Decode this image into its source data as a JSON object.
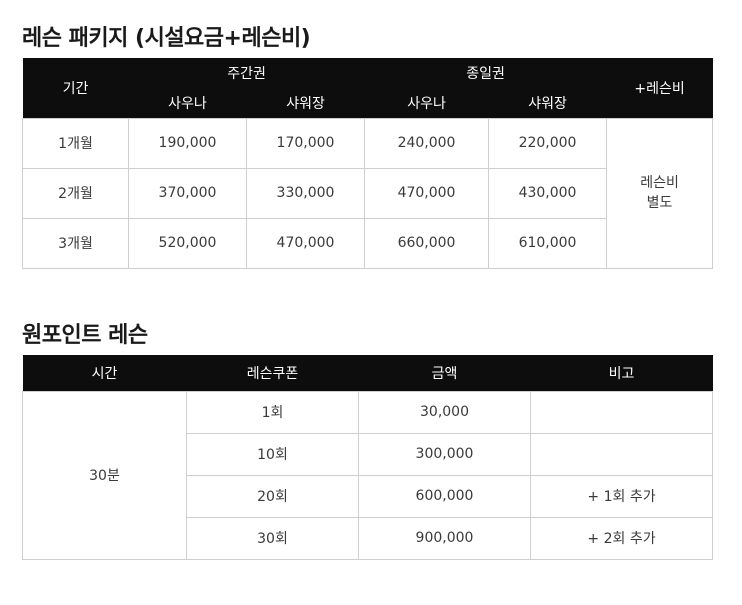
{
  "section1": {
    "title": "레슨 패키지 (시설요금+레슨비)",
    "headers": {
      "period": "기간",
      "weekday": "주간권",
      "fullday": "종일권",
      "sauna": "사우나",
      "shower": "샤워장",
      "lesson_fee": "+레슨비"
    },
    "rows": [
      {
        "period": "1개월",
        "weekday_sauna": "190,000",
        "weekday_shower": "170,000",
        "fullday_sauna": "240,000",
        "fullday_shower": "220,000"
      },
      {
        "period": "2개월",
        "weekday_sauna": "370,000",
        "weekday_shower": "330,000",
        "fullday_sauna": "470,000",
        "fullday_shower": "430,000"
      },
      {
        "period": "3개월",
        "weekday_sauna": "520,000",
        "weekday_shower": "470,000",
        "fullday_sauna": "660,000",
        "fullday_shower": "610,000"
      }
    ],
    "lesson_note_line1": "레슨비",
    "lesson_note_line2": "별도"
  },
  "section2": {
    "title": "원포인트 레슨",
    "headers": {
      "time": "시간",
      "coupon": "레슨쿠폰",
      "amount": "금액",
      "note": "비고"
    },
    "time_value": "30분",
    "rows": [
      {
        "coupon": "1회",
        "amount": "30,000",
        "note": ""
      },
      {
        "coupon": "10회",
        "amount": "300,000",
        "note": ""
      },
      {
        "coupon": "20회",
        "amount": "600,000",
        "note": "+ 1회 추가"
      },
      {
        "coupon": "30회",
        "amount": "900,000",
        "note": "+ 2회 추가"
      }
    ]
  }
}
